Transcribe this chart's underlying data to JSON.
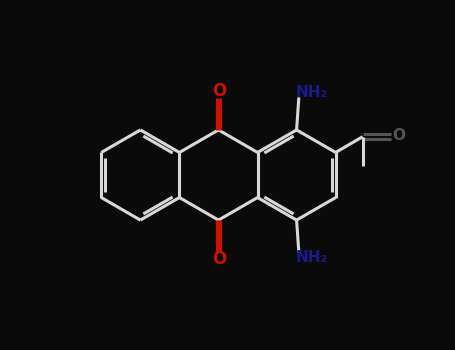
{
  "bg_color": "#0a0a0a",
  "bond_color": "#d8d8d8",
  "o_color": "#cc1100",
  "n_color": "#1a1a8c",
  "acetyl_o_color": "#555555",
  "line_width": 2.2,
  "figsize": [
    4.55,
    3.5
  ],
  "dpi": 100,
  "xlim": [
    0,
    10
  ],
  "ylim": [
    0,
    7.7
  ]
}
